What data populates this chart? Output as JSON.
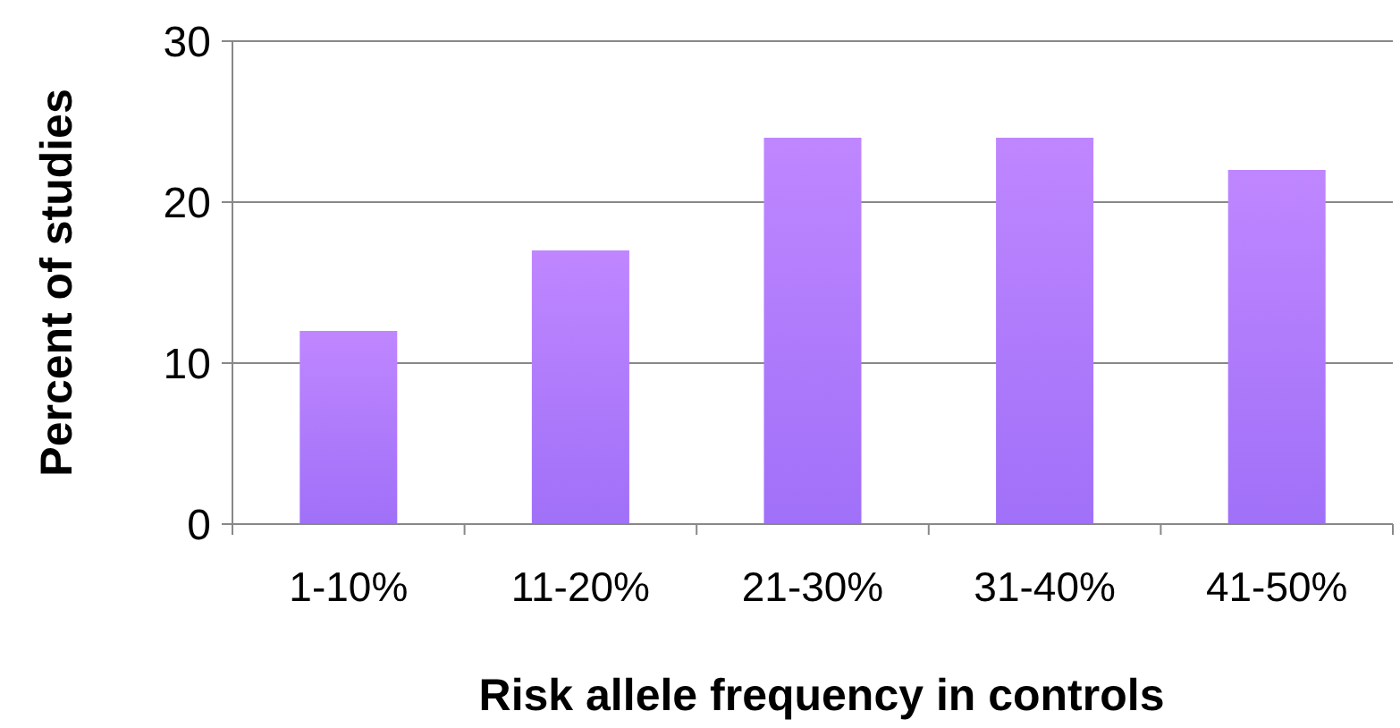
{
  "chart_data": {
    "type": "bar",
    "xlabel": "Risk allele frequency in controls",
    "ylabel": "Percent of studies",
    "categories": [
      "1-10%",
      "11-20%",
      "21-30%",
      "31-40%",
      "41-50%"
    ],
    "values": [
      12,
      17,
      24,
      24,
      22
    ],
    "color": "#a070f8",
    "ylim": [
      0,
      30
    ],
    "yticks": [
      0,
      10,
      20,
      30
    ],
    "grid": "y"
  }
}
